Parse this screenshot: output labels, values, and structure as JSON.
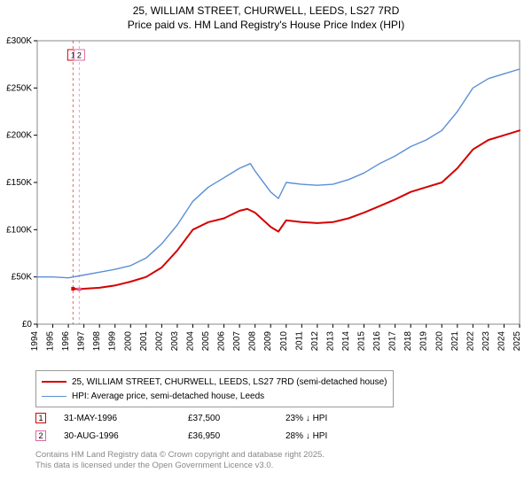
{
  "title_line1": "25, WILLIAM STREET, CHURWELL, LEEDS, LS27 7RD",
  "title_line2": "Price paid vs. HM Land Registry's House Price Index (HPI)",
  "chart": {
    "type": "line",
    "background_color": "#ffffff",
    "plot_border_color": "#888888",
    "grid": false,
    "x": {
      "min": 1994,
      "max": 2025,
      "tick_step": 1,
      "tick_fontsize": 10,
      "tick_rotate": -90,
      "tick_color": "#000000"
    },
    "y": {
      "min": 0,
      "max": 300000,
      "tick_step": 50000,
      "tick_labels": [
        "£0",
        "£50K",
        "£100K",
        "£150K",
        "£200K",
        "£250K",
        "£300K"
      ],
      "tick_fontsize": 10,
      "tick_color": "#000000"
    },
    "series": [
      {
        "name": "25, WILLIAM STREET, CHURWELL, LEEDS, LS27 7RD (semi-detached house)",
        "color": "#d40000",
        "line_width": 2,
        "points": [
          [
            1996.3,
            37500
          ],
          [
            1996.7,
            36950
          ],
          [
            1997,
            37500
          ],
          [
            1998,
            38500
          ],
          [
            1999,
            41000
          ],
          [
            2000,
            45000
          ],
          [
            2001,
            50000
          ],
          [
            2002,
            60000
          ],
          [
            2003,
            78000
          ],
          [
            2004,
            100000
          ],
          [
            2005,
            108000
          ],
          [
            2006,
            112000
          ],
          [
            2007,
            120000
          ],
          [
            2007.5,
            122000
          ],
          [
            2008,
            118000
          ],
          [
            2009,
            103000
          ],
          [
            2009.5,
            98000
          ],
          [
            2010,
            110000
          ],
          [
            2011,
            108000
          ],
          [
            2012,
            107000
          ],
          [
            2013,
            108000
          ],
          [
            2014,
            112000
          ],
          [
            2015,
            118000
          ],
          [
            2016,
            125000
          ],
          [
            2017,
            132000
          ],
          [
            2018,
            140000
          ],
          [
            2019,
            145000
          ],
          [
            2020,
            150000
          ],
          [
            2021,
            165000
          ],
          [
            2022,
            185000
          ],
          [
            2023,
            195000
          ],
          [
            2024,
            200000
          ],
          [
            2025,
            205000
          ]
        ]
      },
      {
        "name": "HPI: Average price, semi-detached house, Leeds",
        "color": "#5b8fd6",
        "line_width": 1.4,
        "points": [
          [
            1994,
            50000
          ],
          [
            1995,
            50000
          ],
          [
            1996,
            49000
          ],
          [
            1997,
            52000
          ],
          [
            1998,
            55000
          ],
          [
            1999,
            58000
          ],
          [
            2000,
            62000
          ],
          [
            2001,
            70000
          ],
          [
            2002,
            85000
          ],
          [
            2003,
            105000
          ],
          [
            2004,
            130000
          ],
          [
            2005,
            145000
          ],
          [
            2006,
            155000
          ],
          [
            2007,
            165000
          ],
          [
            2007.7,
            170000
          ],
          [
            2008,
            162000
          ],
          [
            2009,
            140000
          ],
          [
            2009.5,
            133000
          ],
          [
            2010,
            150000
          ],
          [
            2011,
            148000
          ],
          [
            2012,
            147000
          ],
          [
            2013,
            148000
          ],
          [
            2014,
            153000
          ],
          [
            2015,
            160000
          ],
          [
            2016,
            170000
          ],
          [
            2017,
            178000
          ],
          [
            2018,
            188000
          ],
          [
            2019,
            195000
          ],
          [
            2020,
            205000
          ],
          [
            2021,
            225000
          ],
          [
            2022,
            250000
          ],
          [
            2023,
            260000
          ],
          [
            2024,
            265000
          ],
          [
            2025,
            270000
          ]
        ]
      }
    ],
    "markers": [
      {
        "label": "1",
        "x": 1996.3,
        "y": 37500,
        "box_color": "#d40000",
        "line_color": "#d40000"
      },
      {
        "label": "2",
        "x": 1996.7,
        "y": 36950,
        "box_color": "#e066a3",
        "line_color": "#e066a3"
      }
    ]
  },
  "legend": {
    "rows": [
      {
        "color": "#d40000",
        "width": 2,
        "label": "25, WILLIAM STREET, CHURWELL, LEEDS, LS27 7RD (semi-detached house)"
      },
      {
        "color": "#5b8fd6",
        "width": 1.4,
        "label": "HPI: Average price, semi-detached house, Leeds"
      }
    ]
  },
  "trades": [
    {
      "n": "1",
      "color": "#d40000",
      "date": "31-MAY-1996",
      "price": "£37,500",
      "delta": "23% ↓ HPI"
    },
    {
      "n": "2",
      "color": "#e066a3",
      "date": "30-AUG-1996",
      "price": "£36,950",
      "delta": "28% ↓ HPI"
    }
  ],
  "footnote_line1": "Contains HM Land Registry data © Crown copyright and database right 2025.",
  "footnote_line2": "This data is licensed under the Open Government Licence v3.0."
}
